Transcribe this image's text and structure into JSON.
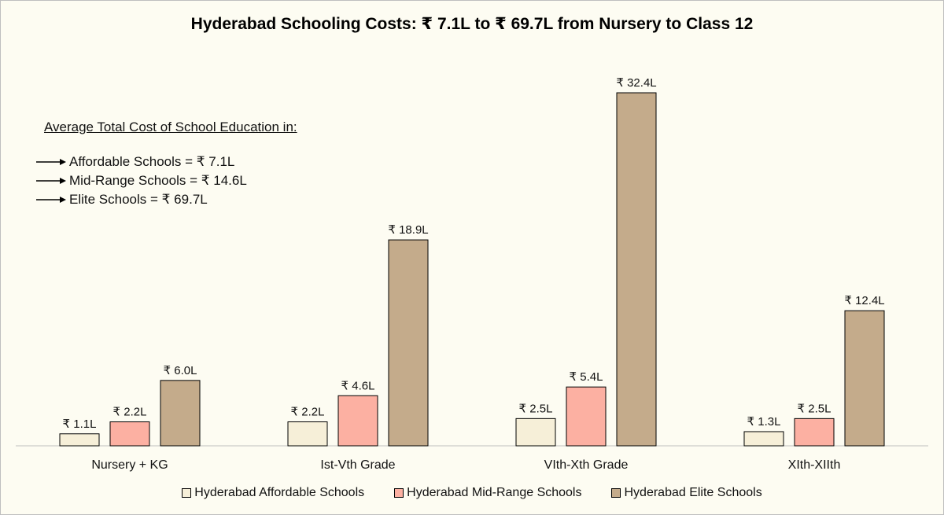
{
  "chart_data": {
    "type": "bar",
    "title": "Hyderabad Schooling Costs: ₹ 7.1L to ₹ 69.7L from Nursery to Class 12",
    "categories": [
      "Nursery + KG",
      "Ist-Vth Grade",
      "VIth-Xth Grade",
      "XIth-XIIth"
    ],
    "series": [
      {
        "name": "Hyderabad Affordable Schools",
        "color": "#f6efd8",
        "values": [
          1.1,
          2.2,
          2.5,
          1.3
        ],
        "labels": [
          "₹ 1.1L",
          "₹ 2.2L",
          "₹ 2.5L",
          "₹ 1.3L"
        ]
      },
      {
        "name": "Hyderabad Mid-Range Schools",
        "color": "#fcb0a2",
        "values": [
          2.2,
          4.6,
          5.4,
          2.5
        ],
        "labels": [
          "₹ 2.2L",
          "₹ 4.6L",
          "₹ 5.4L",
          "₹ 2.5L"
        ]
      },
      {
        "name": "Hyderabad Elite Schools",
        "color": "#c4ab8b",
        "values": [
          6.0,
          18.9,
          32.4,
          12.4
        ],
        "labels": [
          "₹ 6.0L",
          "₹ 18.9L",
          "₹ 32.4L",
          "₹ 12.4L"
        ]
      }
    ],
    "ylim": [
      0,
      32.4
    ],
    "grid": false,
    "legend_position": "bottom"
  },
  "annotation": {
    "heading": "Average Total Cost of School Education in:",
    "lines": [
      "Affordable Schools = ₹ 7.1L",
      "Mid-Range Schools = ₹ 14.6L",
      "Elite Schools = ₹ 69.7L"
    ]
  }
}
